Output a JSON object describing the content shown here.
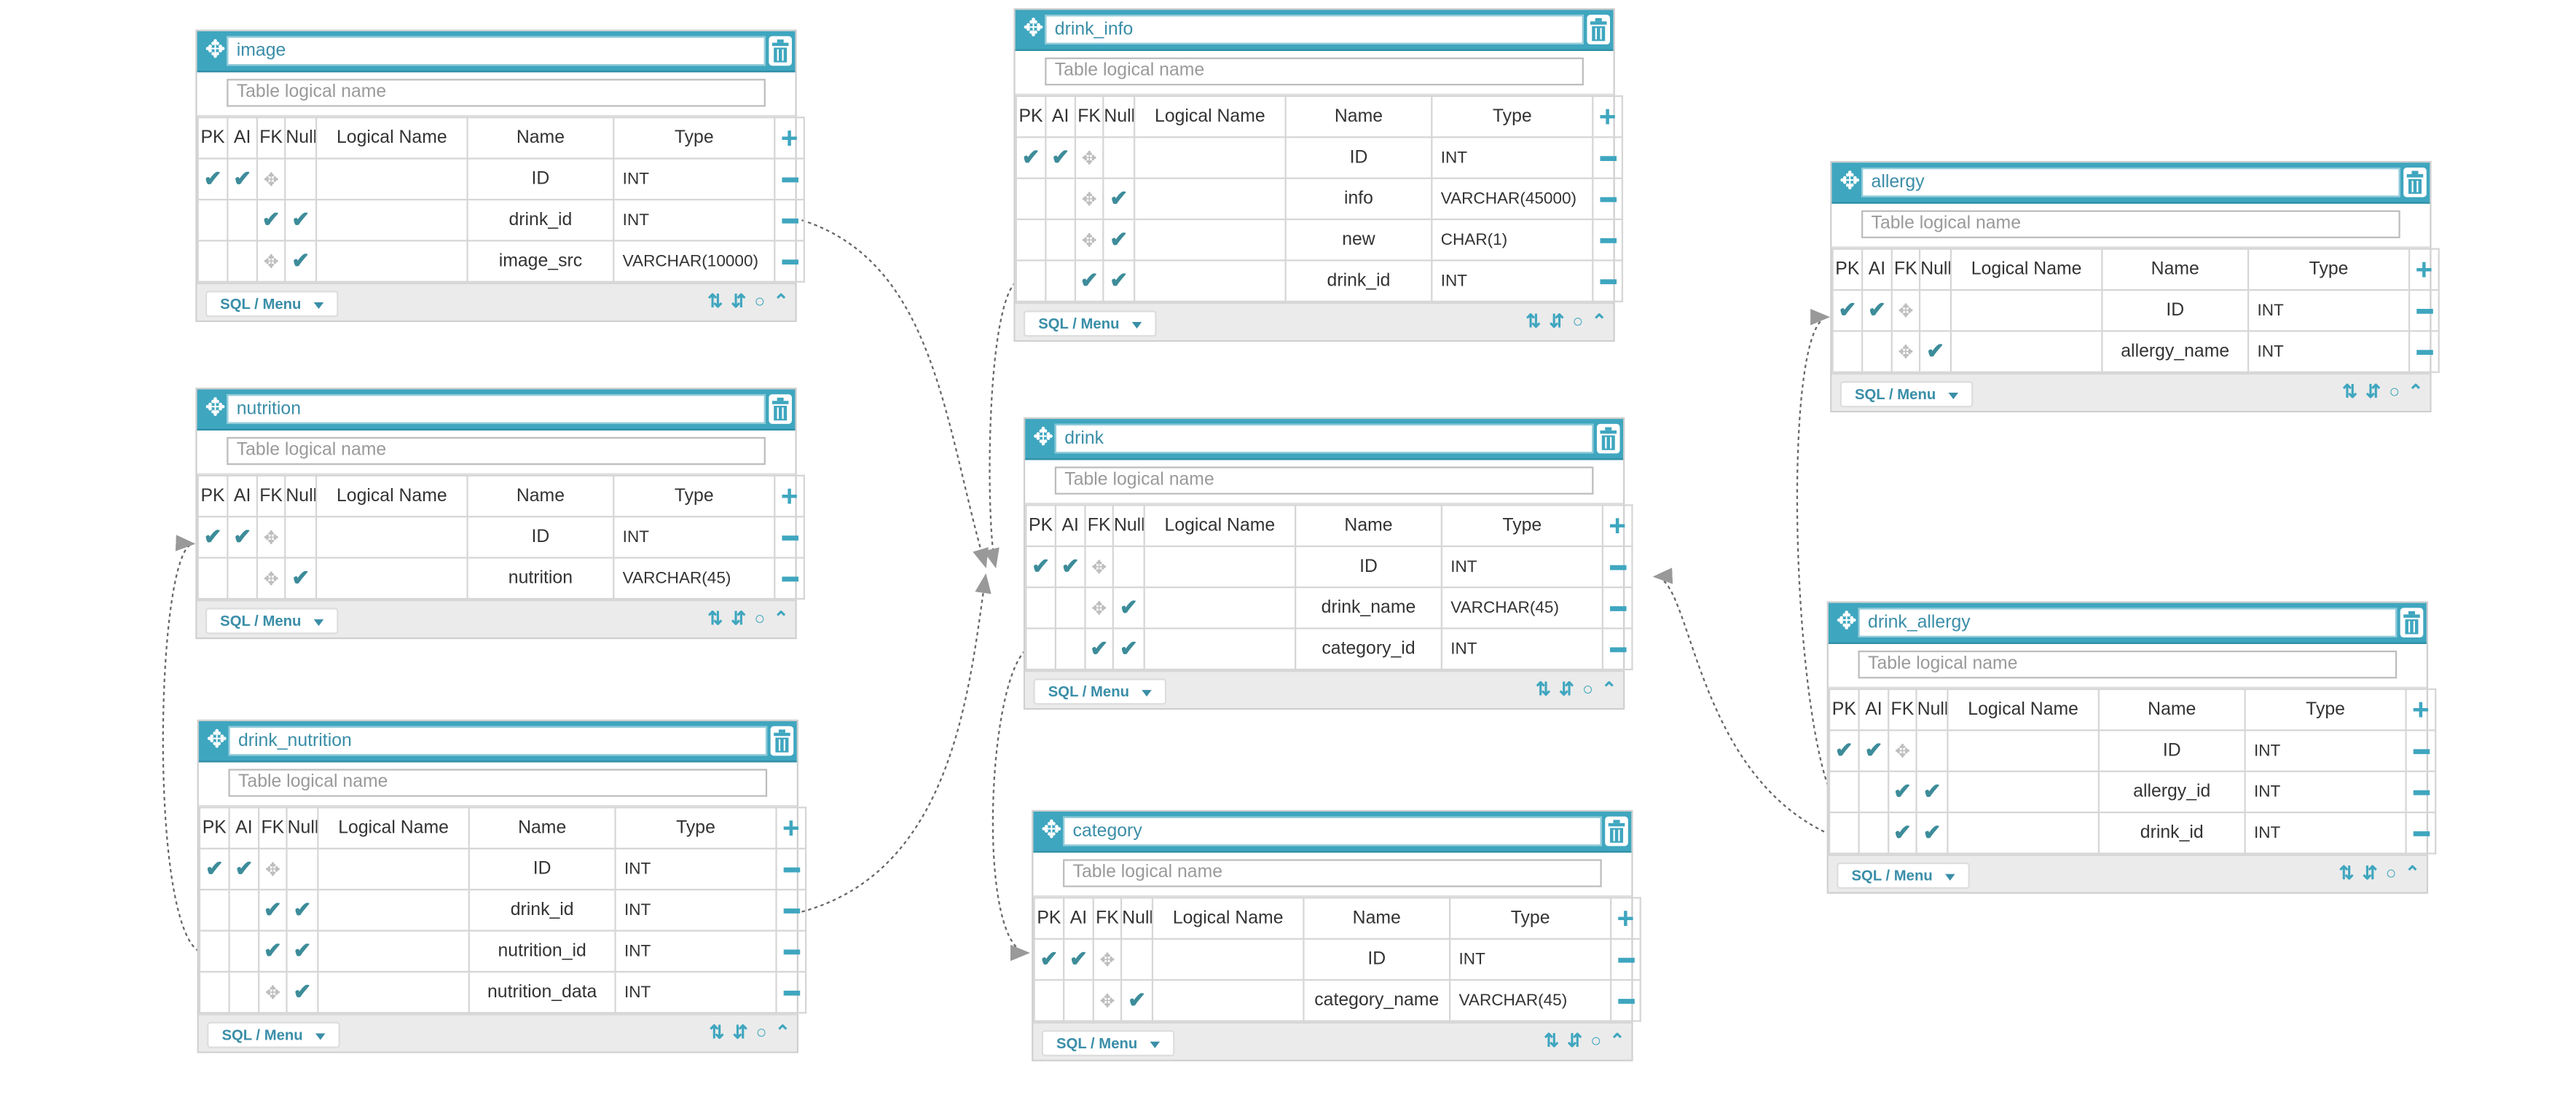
{
  "ui": {
    "logical_placeholder": "Table logical name",
    "sql_menu": "SQL / Menu",
    "columns": {
      "pk": "PK",
      "ai": "AI",
      "fk": "FK",
      "null": "Null",
      "logical": "Logical Name",
      "name": "Name",
      "type": "Type"
    },
    "accent": "#3fa6bf",
    "check_color": "#3d8c9a",
    "icons": {
      "move": "move-icon",
      "delete": "trash-icon",
      "add": "plus-icon",
      "remove": "minus-icon",
      "sort": "sort-az-icon",
      "order": "up-down-icon",
      "comment": "comment-icon",
      "collapse": "chevron-up-icon"
    }
  },
  "tables": {
    "image": {
      "name": "image",
      "fields": [
        {
          "pk": true,
          "ai": true,
          "fk": false,
          "null": false,
          "name": "ID",
          "type": "INT"
        },
        {
          "pk": false,
          "ai": false,
          "fk": true,
          "null": true,
          "name": "drink_id",
          "type": "INT"
        },
        {
          "pk": false,
          "ai": false,
          "fk": false,
          "null": true,
          "name": "image_src",
          "type": "VARCHAR(10000)"
        }
      ]
    },
    "nutrition": {
      "name": "nutrition",
      "fields": [
        {
          "pk": true,
          "ai": true,
          "fk": false,
          "null": false,
          "name": "ID",
          "type": "INT"
        },
        {
          "pk": false,
          "ai": false,
          "fk": false,
          "null": true,
          "name": "nutrition",
          "type": "VARCHAR(45)"
        }
      ]
    },
    "drink_nutrition": {
      "name": "drink_nutrition",
      "fields": [
        {
          "pk": true,
          "ai": true,
          "fk": false,
          "null": false,
          "name": "ID",
          "type": "INT"
        },
        {
          "pk": false,
          "ai": false,
          "fk": true,
          "null": true,
          "name": "drink_id",
          "type": "INT"
        },
        {
          "pk": false,
          "ai": false,
          "fk": true,
          "null": true,
          "name": "nutrition_id",
          "type": "INT"
        },
        {
          "pk": false,
          "ai": false,
          "fk": false,
          "null": true,
          "name": "nutrition_data",
          "type": "INT"
        }
      ]
    },
    "drink_info": {
      "name": "drink_info",
      "fields": [
        {
          "pk": true,
          "ai": true,
          "fk": false,
          "null": false,
          "name": "ID",
          "type": "INT"
        },
        {
          "pk": false,
          "ai": false,
          "fk": false,
          "null": true,
          "name": "info",
          "type": "VARCHAR(45000)"
        },
        {
          "pk": false,
          "ai": false,
          "fk": false,
          "null": true,
          "name": "new",
          "type": "CHAR(1)"
        },
        {
          "pk": false,
          "ai": false,
          "fk": true,
          "null": true,
          "name": "drink_id",
          "type": "INT"
        }
      ]
    },
    "drink": {
      "name": "drink",
      "fields": [
        {
          "pk": true,
          "ai": true,
          "fk": false,
          "null": false,
          "name": "ID",
          "type": "INT"
        },
        {
          "pk": false,
          "ai": false,
          "fk": false,
          "null": true,
          "name": "drink_name",
          "type": "VARCHAR(45)"
        },
        {
          "pk": false,
          "ai": false,
          "fk": true,
          "null": true,
          "name": "category_id",
          "type": "INT"
        }
      ]
    },
    "category": {
      "name": "category",
      "fields": [
        {
          "pk": true,
          "ai": true,
          "fk": false,
          "null": false,
          "name": "ID",
          "type": "INT"
        },
        {
          "pk": false,
          "ai": false,
          "fk": false,
          "null": true,
          "name": "category_name",
          "type": "VARCHAR(45)"
        }
      ]
    },
    "allergy": {
      "name": "allergy",
      "fields": [
        {
          "pk": true,
          "ai": true,
          "fk": false,
          "null": false,
          "name": "ID",
          "type": "INT"
        },
        {
          "pk": false,
          "ai": false,
          "fk": false,
          "null": true,
          "name": "allergy_name",
          "type": "INT"
        }
      ]
    },
    "drink_allergy": {
      "name": "drink_allergy",
      "fields": [
        {
          "pk": true,
          "ai": true,
          "fk": false,
          "null": false,
          "name": "ID",
          "type": "INT"
        },
        {
          "pk": false,
          "ai": false,
          "fk": true,
          "null": true,
          "name": "allergy_id",
          "type": "INT"
        },
        {
          "pk": false,
          "ai": false,
          "fk": true,
          "null": true,
          "name": "drink_id",
          "type": "INT"
        }
      ]
    }
  }
}
